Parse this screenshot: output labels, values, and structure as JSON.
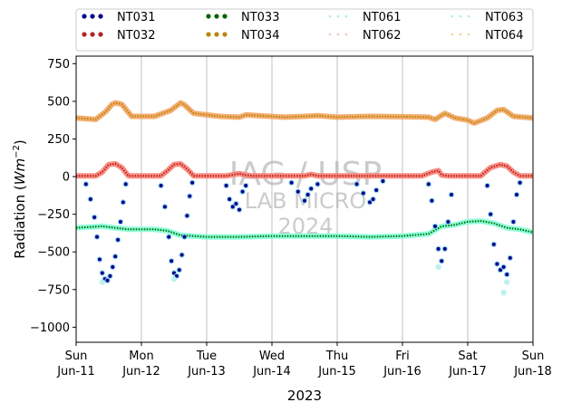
{
  "chart_data": {
    "type": "scatter",
    "title": "",
    "xlabel": "2023",
    "ylabel_main": "Radiation (",
    "ylabel_unit": "Wm",
    "ylabel_exp": "−2",
    "ylabel_close": ")",
    "ylim": [
      -1100,
      800
    ],
    "xlim_days": [
      0,
      7
    ],
    "grid": "vertical-only",
    "legend_position": "top, above plot, 4 columns",
    "x_ticks": [
      {
        "day": "Sun",
        "date": "Jun-11"
      },
      {
        "day": "Mon",
        "date": "Jun-12"
      },
      {
        "day": "Tue",
        "date": "Jun-13"
      },
      {
        "day": "Wed",
        "date": "Jun-14"
      },
      {
        "day": "Thu",
        "date": "Jun-15"
      },
      {
        "day": "Fri",
        "date": "Jun-16"
      },
      {
        "day": "Sat",
        "date": "Jun-17"
      },
      {
        "day": "Sun",
        "date": "Jun-18"
      }
    ],
    "y_ticks": [
      {
        "value": 750,
        "label": "750"
      },
      {
        "value": 500,
        "label": "500"
      },
      {
        "value": 250,
        "label": "250"
      },
      {
        "value": 0,
        "label": "0"
      },
      {
        "value": -250,
        "label": "−250"
      },
      {
        "value": -500,
        "label": "−500"
      },
      {
        "value": -750,
        "label": "−750"
      },
      {
        "value": -1000,
        "label": "−1000"
      }
    ],
    "watermark": {
      "line1": "IAG / USP",
      "line2": "LAB MICRO",
      "line3": "2024"
    },
    "legend": [
      {
        "name": "NT031",
        "color": "#00008b",
        "style": "dots"
      },
      {
        "name": "NT033",
        "color": "#006400",
        "style": "dots"
      },
      {
        "name": "NT061",
        "color": "#aeeeee",
        "style": "faint"
      },
      {
        "name": "NT063",
        "color": "#b0f0e0",
        "style": "faint"
      },
      {
        "name": "NT032",
        "color": "#b22222",
        "style": "dots"
      },
      {
        "name": "NT034",
        "color": "#b8860b",
        "style": "dots"
      },
      {
        "name": "NT062",
        "color": "#f4c8c0",
        "style": "faint"
      },
      {
        "name": "NT064",
        "color": "#f0d8a0",
        "style": "faint"
      }
    ],
    "series": [
      {
        "name": "NT034",
        "color": "#b8860b",
        "halo": "#f4a460",
        "points": [
          [
            0,
            390
          ],
          [
            0.3,
            380
          ],
          [
            0.45,
            430
          ],
          [
            0.55,
            480
          ],
          [
            0.6,
            490
          ],
          [
            0.7,
            480
          ],
          [
            0.85,
            400
          ],
          [
            1.2,
            400
          ],
          [
            1.45,
            440
          ],
          [
            1.6,
            490
          ],
          [
            1.65,
            480
          ],
          [
            1.8,
            420
          ],
          [
            2.2,
            400
          ],
          [
            2.5,
            395
          ],
          [
            2.6,
            410
          ],
          [
            2.8,
            405
          ],
          [
            3.2,
            395
          ],
          [
            3.5,
            400
          ],
          [
            3.7,
            405
          ],
          [
            4.0,
            395
          ],
          [
            4.5,
            400
          ],
          [
            5.0,
            398
          ],
          [
            5.4,
            395
          ],
          [
            5.5,
            380
          ],
          [
            5.65,
            420
          ],
          [
            5.8,
            390
          ],
          [
            6.0,
            375
          ],
          [
            6.1,
            355
          ],
          [
            6.3,
            390
          ],
          [
            6.45,
            440
          ],
          [
            6.55,
            445
          ],
          [
            6.7,
            400
          ],
          [
            7.0,
            390
          ]
        ]
      },
      {
        "name": "NT032",
        "color": "#b22222",
        "halo": "#fa8072",
        "points": [
          [
            0,
            5
          ],
          [
            0.3,
            5
          ],
          [
            0.4,
            30
          ],
          [
            0.5,
            80
          ],
          [
            0.6,
            85
          ],
          [
            0.7,
            60
          ],
          [
            0.8,
            5
          ],
          [
            1.3,
            5
          ],
          [
            1.4,
            40
          ],
          [
            1.5,
            80
          ],
          [
            1.6,
            85
          ],
          [
            1.7,
            50
          ],
          [
            1.8,
            5
          ],
          [
            2.3,
            5
          ],
          [
            2.5,
            20
          ],
          [
            2.6,
            10
          ],
          [
            2.7,
            5
          ],
          [
            3.5,
            5
          ],
          [
            3.6,
            15
          ],
          [
            3.7,
            5
          ],
          [
            5.3,
            5
          ],
          [
            5.45,
            30
          ],
          [
            5.55,
            40
          ],
          [
            5.6,
            10
          ],
          [
            5.7,
            5
          ],
          [
            6.2,
            5
          ],
          [
            6.35,
            60
          ],
          [
            6.5,
            80
          ],
          [
            6.6,
            70
          ],
          [
            6.7,
            30
          ],
          [
            6.8,
            5
          ],
          [
            7.0,
            5
          ]
        ]
      },
      {
        "name": "NT033",
        "color": "#006400",
        "halo": "#7fffd4",
        "points": [
          [
            0,
            -340
          ],
          [
            0.4,
            -330
          ],
          [
            0.6,
            -340
          ],
          [
            0.8,
            -350
          ],
          [
            1.2,
            -350
          ],
          [
            1.4,
            -360
          ],
          [
            1.6,
            -390
          ],
          [
            1.8,
            -395
          ],
          [
            2.0,
            -400
          ],
          [
            2.5,
            -400
          ],
          [
            3.0,
            -395
          ],
          [
            3.5,
            -395
          ],
          [
            4.0,
            -395
          ],
          [
            4.5,
            -400
          ],
          [
            5.0,
            -395
          ],
          [
            5.4,
            -380
          ],
          [
            5.6,
            -330
          ],
          [
            5.8,
            -320
          ],
          [
            6.0,
            -300
          ],
          [
            6.2,
            -295
          ],
          [
            6.4,
            -310
          ],
          [
            6.6,
            -340
          ],
          [
            6.8,
            -350
          ],
          [
            7.0,
            -370
          ]
        ]
      },
      {
        "name": "NT031",
        "color": "#00008b",
        "halo": "#87ceeb",
        "points": [
          [
            0.15,
            -50
          ],
          [
            0.22,
            -150
          ],
          [
            0.28,
            -270
          ],
          [
            0.32,
            -400
          ],
          [
            0.36,
            -550
          ],
          [
            0.4,
            -640
          ],
          [
            0.44,
            -680
          ],
          [
            0.48,
            -690
          ],
          [
            0.52,
            -660
          ],
          [
            0.56,
            -600
          ],
          [
            0.6,
            -530
          ],
          [
            0.64,
            -420
          ],
          [
            0.68,
            -300
          ],
          [
            0.72,
            -170
          ],
          [
            0.76,
            -50
          ],
          [
            1.3,
            -60
          ],
          [
            1.36,
            -200
          ],
          [
            1.42,
            -400
          ],
          [
            1.46,
            -560
          ],
          [
            1.5,
            -640
          ],
          [
            1.54,
            -660
          ],
          [
            1.58,
            -620
          ],
          [
            1.62,
            -520
          ],
          [
            1.66,
            -400
          ],
          [
            1.7,
            -260
          ],
          [
            1.74,
            -130
          ],
          [
            1.78,
            -40
          ],
          [
            2.3,
            -60
          ],
          [
            2.35,
            -150
          ],
          [
            2.4,
            -200
          ],
          [
            2.45,
            -180
          ],
          [
            2.5,
            -220
          ],
          [
            2.55,
            -100
          ],
          [
            2.6,
            -60
          ],
          [
            3.3,
            -40
          ],
          [
            3.4,
            -100
          ],
          [
            3.5,
            -160
          ],
          [
            3.55,
            -120
          ],
          [
            3.6,
            -80
          ],
          [
            3.7,
            -50
          ],
          [
            4.3,
            -50
          ],
          [
            4.4,
            -110
          ],
          [
            4.5,
            -170
          ],
          [
            4.55,
            -150
          ],
          [
            4.6,
            -90
          ],
          [
            4.7,
            -30
          ],
          [
            5.4,
            -50
          ],
          [
            5.45,
            -160
          ],
          [
            5.5,
            -330
          ],
          [
            5.55,
            -480
          ],
          [
            5.6,
            -560
          ],
          [
            5.65,
            -480
          ],
          [
            5.7,
            -300
          ],
          [
            5.75,
            -120
          ],
          [
            6.3,
            -60
          ],
          [
            6.35,
            -250
          ],
          [
            6.4,
            -450
          ],
          [
            6.45,
            -580
          ],
          [
            6.5,
            -620
          ],
          [
            6.55,
            -600
          ],
          [
            6.6,
            -650
          ],
          [
            6.65,
            -540
          ],
          [
            6.7,
            -300
          ],
          [
            6.75,
            -120
          ],
          [
            6.8,
            -40
          ]
        ]
      },
      {
        "name": "NT061",
        "color": "#aeeeee",
        "halo": "#aeeeee",
        "points": [
          [
            0.4,
            -700
          ],
          [
            1.5,
            -680
          ],
          [
            5.55,
            -600
          ],
          [
            6.55,
            -770
          ],
          [
            6.6,
            -700
          ]
        ]
      }
    ]
  }
}
